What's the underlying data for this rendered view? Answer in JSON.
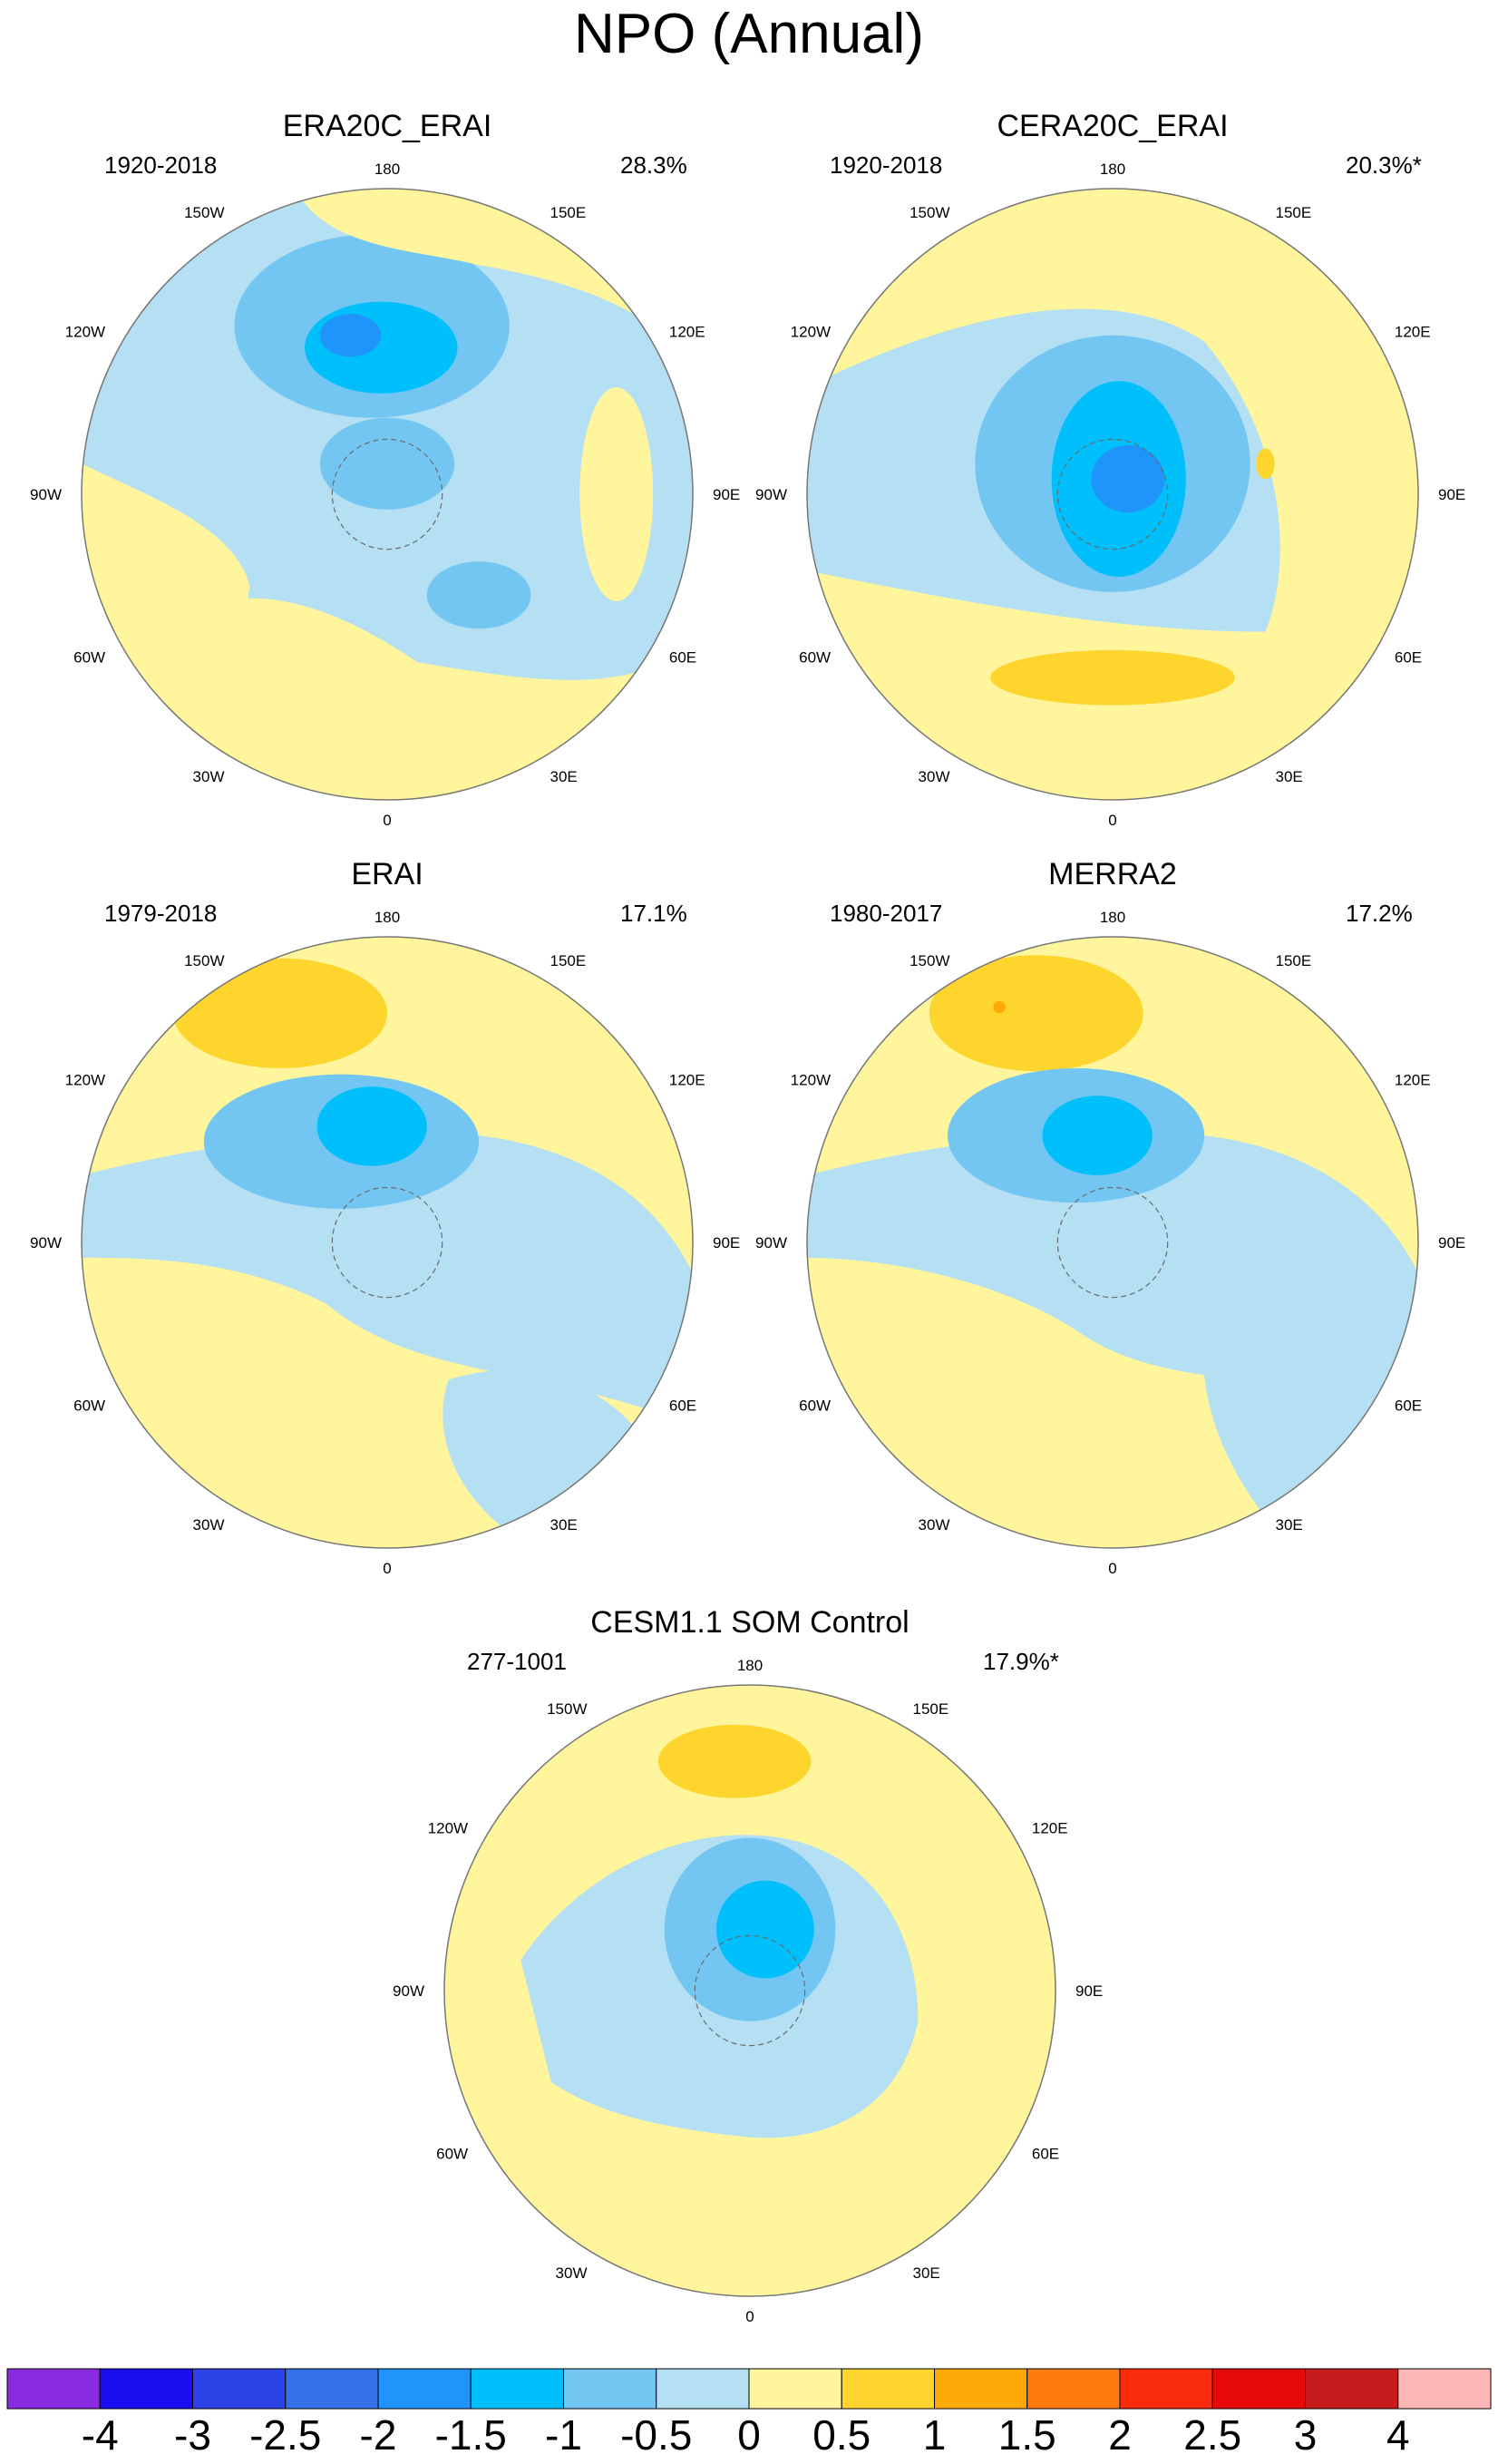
{
  "title": "NPO (Annual)",
  "lon_labels": [
    "180",
    "150E",
    "120E",
    "90E",
    "60E",
    "30E",
    "0",
    "30W",
    "60W",
    "90W",
    "120W",
    "150W"
  ],
  "panels": [
    {
      "id": "era20c-erai",
      "title": "ERA20C_ERAI",
      "period": "1920-2018",
      "variance": "28.3%"
    },
    {
      "id": "cera20c-erai",
      "title": "CERA20C_ERAI",
      "period": "1920-2018",
      "variance": "20.3%*"
    },
    {
      "id": "erai",
      "title": "ERAI",
      "period": "1979-2018",
      "variance": "17.1%"
    },
    {
      "id": "merra2",
      "title": "MERRA2",
      "period": "1980-2017",
      "variance": "17.2%"
    },
    {
      "id": "cesm-som",
      "title": "CESM1.1 SOM Control",
      "period": "277-1001",
      "variance": "17.9%*"
    }
  ],
  "colorbar": {
    "labels": [
      "-4",
      "-3",
      "-2.5",
      "-2",
      "-1.5",
      "-1",
      "-0.5",
      "0",
      "0.5",
      "1",
      "1.5",
      "2",
      "2.5",
      "3",
      "4"
    ],
    "colors": [
      "#8a2be2",
      "#1a0df0",
      "#2c43e8",
      "#3371e8",
      "#1f94fa",
      "#00bffa",
      "#74c6f2",
      "#b5dff2",
      "#fff59d",
      "#fdd52c",
      "#fea905",
      "#fd7a0c",
      "#fb2c0c",
      "#e8090b",
      "#c81b1e",
      "#fcb6b6"
    ]
  },
  "colors": {
    "ocean_pos": "#fff59d",
    "neg_weak": "#b5dff2",
    "neg_mid": "#74c6f2",
    "neg_strong": "#00bffa",
    "neg_core": "#1f94fa",
    "pos_mid": "#fdd52c",
    "pos_core": "#fea905"
  }
}
